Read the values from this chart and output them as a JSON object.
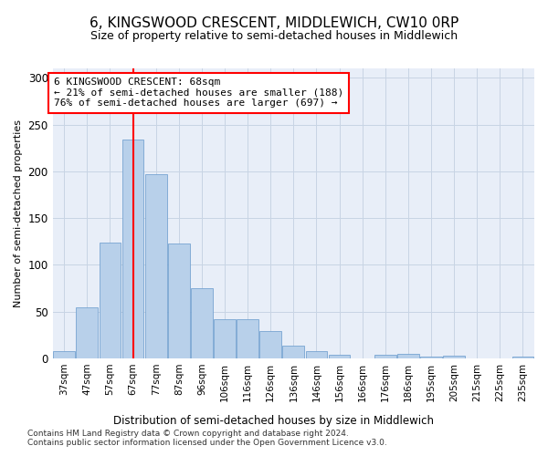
{
  "title": "6, KINGSWOOD CRESCENT, MIDDLEWICH, CW10 0RP",
  "subtitle": "Size of property relative to semi-detached houses in Middlewich",
  "xlabel": "Distribution of semi-detached houses by size in Middlewich",
  "ylabel": "Number of semi-detached properties",
  "categories": [
    "37sqm",
    "47sqm",
    "57sqm",
    "67sqm",
    "77sqm",
    "87sqm",
    "96sqm",
    "106sqm",
    "116sqm",
    "126sqm",
    "136sqm",
    "146sqm",
    "156sqm",
    "166sqm",
    "176sqm",
    "186sqm",
    "195sqm",
    "205sqm",
    "215sqm",
    "225sqm",
    "235sqm"
  ],
  "values": [
    8,
    55,
    124,
    234,
    197,
    123,
    75,
    42,
    42,
    29,
    14,
    8,
    4,
    0,
    4,
    5,
    2,
    3,
    0,
    0,
    2
  ],
  "bar_color": "#b8d0ea",
  "bar_edge_color": "#6699cc",
  "annotation_title": "6 KINGSWOOD CRESCENT: 68sqm",
  "annotation_line1": "← 21% of semi-detached houses are smaller (188)",
  "annotation_line2": "76% of semi-detached houses are larger (697) →",
  "vline_color": "red",
  "vline_x": 3.0,
  "ylim": [
    0,
    310
  ],
  "yticks": [
    0,
    50,
    100,
    150,
    200,
    250,
    300
  ],
  "grid_color": "#c8d4e4",
  "background_color": "#e8eef8",
  "footnote1": "Contains HM Land Registry data © Crown copyright and database right 2024.",
  "footnote2": "Contains public sector information licensed under the Open Government Licence v3.0."
}
